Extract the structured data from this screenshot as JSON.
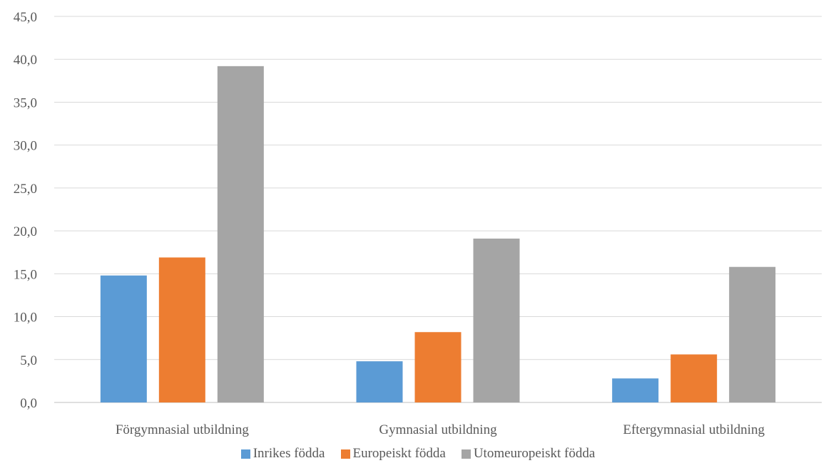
{
  "chart_data": {
    "type": "bar",
    "categories": [
      "Förgymnasial utbildning",
      "Gymnasial utbildning",
      "Eftergymnasial utbildning"
    ],
    "series": [
      {
        "name": "Inrikes födda",
        "color": "#5B9BD5",
        "values": [
          14.8,
          4.8,
          2.8
        ]
      },
      {
        "name": "Europeiskt födda",
        "color": "#ED7D31",
        "values": [
          16.9,
          8.2,
          5.6
        ]
      },
      {
        "name": "Utomeuropeiskt födda",
        "color": "#A5A5A5",
        "values": [
          39.2,
          19.1,
          15.8
        ]
      }
    ],
    "y_ticks": [
      "0,0",
      "5,0",
      "10,0",
      "15,0",
      "20,0",
      "25,0",
      "30,0",
      "35,0",
      "40,0",
      "45,0"
    ],
    "ylim": [
      0,
      45
    ],
    "grid": true,
    "legend_position": "bottom"
  }
}
